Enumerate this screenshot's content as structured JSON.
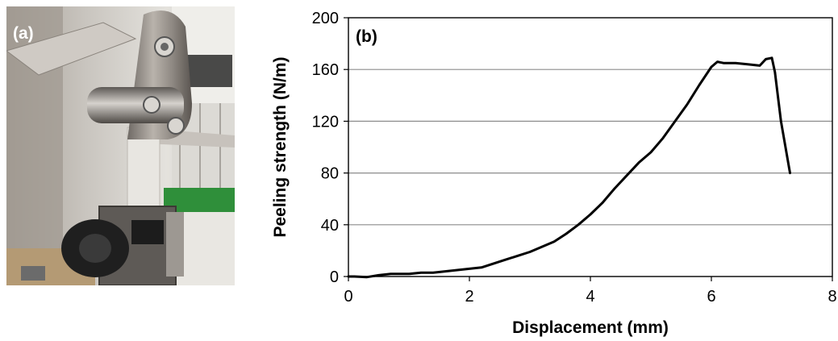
{
  "panel_a": {
    "label": "(a)"
  },
  "chart_data": {
    "type": "line",
    "panel_label": "(b)",
    "title": "",
    "xlabel": "Displacement (mm)",
    "ylabel": "Peeling strength (N/m)",
    "xlim": [
      0,
      8
    ],
    "ylim": [
      0,
      200
    ],
    "x_ticks": [
      0,
      2,
      4,
      6,
      8
    ],
    "y_ticks": [
      0,
      40,
      80,
      120,
      160,
      200
    ],
    "grid": "horizontal",
    "legend": "none",
    "line_color": "#000000",
    "series": [
      {
        "x": [
          0,
          0.1,
          0.3,
          0.5,
          0.7,
          1.0,
          1.2,
          1.4,
          1.6,
          1.8,
          2.0,
          2.2,
          2.4,
          2.6,
          2.8,
          3.0,
          3.2,
          3.4,
          3.6,
          3.8,
          4.0,
          4.2,
          4.4,
          4.6,
          4.8,
          5.0,
          5.2,
          5.4,
          5.6,
          5.8,
          6.0,
          6.1,
          6.2,
          6.4,
          6.6,
          6.8,
          6.9,
          7.0,
          7.05,
          7.15,
          7.3
        ],
        "y": [
          0,
          0,
          -0.5,
          1,
          2,
          2,
          3,
          3,
          4,
          5,
          6,
          7,
          10,
          13,
          16,
          19,
          23,
          27,
          33,
          40,
          48,
          57,
          68,
          78,
          88,
          96,
          107,
          120,
          133,
          148,
          162,
          166,
          165,
          165,
          164,
          163,
          168,
          169,
          158,
          120,
          80
        ]
      }
    ]
  }
}
